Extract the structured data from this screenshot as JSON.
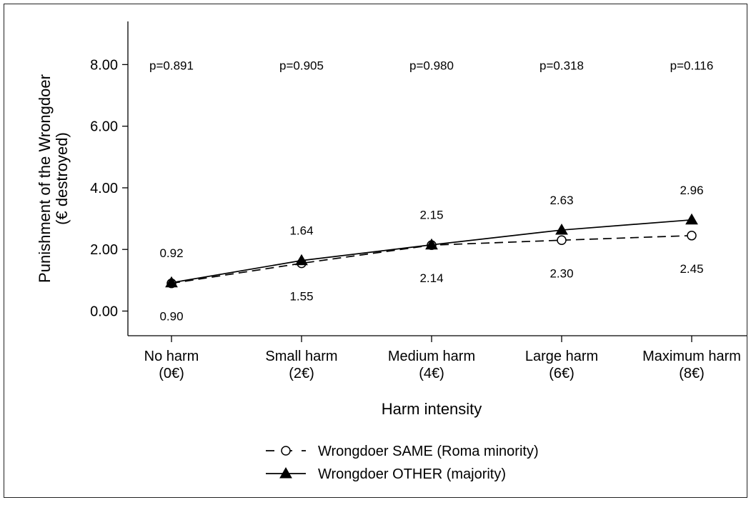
{
  "chart_data": {
    "type": "line",
    "categories": [
      "No harm (0€)",
      "Small harm (2€)",
      "Medium harm (4€)",
      "Large harm (6€)",
      "Maximum harm (8€)"
    ],
    "category_lines": [
      [
        "No harm",
        "(0€)"
      ],
      [
        "Small harm",
        "(2€)"
      ],
      [
        "Medium harm",
        "(4€)"
      ],
      [
        "Large harm",
        "(6€)"
      ],
      [
        "Maximum harm",
        "(8€)"
      ]
    ],
    "xlabel": "Harm intensity",
    "ylabel_lines": [
      "Punishment of the Wrongdoer",
      "(€ destroyed)"
    ],
    "ylim": [
      -0.8,
      9.4
    ],
    "yticks": [
      0,
      2,
      4,
      6,
      8
    ],
    "ytick_labels": [
      "0.00",
      "2.00",
      "4.00",
      "6.00",
      "8.00"
    ],
    "grid": false,
    "legend_position": "bottom",
    "p_values": [
      "p=0.891",
      "p=0.905",
      "p=0.980",
      "p=0.318",
      "p=0.116"
    ],
    "p_value_y": 8.0,
    "series": [
      {
        "name": "Wrongdoer SAME (Roma minority)",
        "values": [
          0.9,
          1.55,
          2.14,
          2.3,
          2.45
        ],
        "labels": [
          "0.90",
          "1.55",
          "2.14",
          "2.30",
          "2.45"
        ],
        "line_style": "dashed",
        "marker": "hollow-circle",
        "label_side": "below"
      },
      {
        "name": "Wrongdoer OTHER (majority)",
        "values": [
          0.92,
          1.64,
          2.15,
          2.63,
          2.96
        ],
        "labels": [
          "0.92",
          "1.64",
          "2.15",
          "2.63",
          "2.96"
        ],
        "line_style": "solid",
        "marker": "filled-triangle",
        "label_side": "above"
      }
    ]
  }
}
